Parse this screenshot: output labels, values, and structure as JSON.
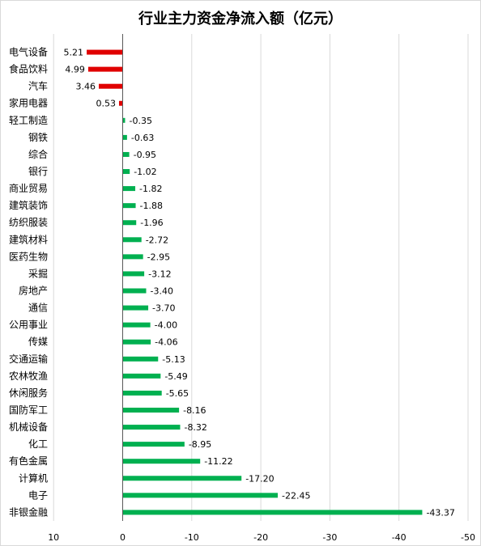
{
  "chart_data": {
    "type": "bar",
    "orientation": "horizontal",
    "title": "行业主力资金净流入额（亿元）",
    "xlabel": "",
    "ylabel": "",
    "xlim": [
      10,
      -50
    ],
    "x_reversed": true,
    "x_ticks": [
      10,
      0,
      -10,
      -20,
      -30,
      -40,
      -50
    ],
    "grid": "vertical",
    "legend": "none",
    "colors": {
      "positive": "#e00000",
      "negative": "#00b050",
      "grid": "#d9d9d9",
      "axis": "#595959"
    },
    "categories": [
      "电气设备",
      "食品饮料",
      "汽车",
      "家用电器",
      "轻工制造",
      "钢铁",
      "综合",
      "银行",
      "商业贸易",
      "建筑装饰",
      "纺织服装",
      "建筑材料",
      "医药生物",
      "采掘",
      "房地产",
      "通信",
      "公用事业",
      "传媒",
      "交通运输",
      "农林牧渔",
      "休闲服务",
      "国防军工",
      "机械设备",
      "化工",
      "有色金属",
      "计算机",
      "电子",
      "非银金融"
    ],
    "values": [
      5.21,
      4.99,
      3.46,
      0.53,
      -0.35,
      -0.63,
      -0.95,
      -1.02,
      -1.82,
      -1.88,
      -1.96,
      -2.72,
      -2.95,
      -3.12,
      -3.4,
      -3.7,
      -4.0,
      -4.06,
      -5.13,
      -5.49,
      -5.65,
      -8.16,
      -8.32,
      -8.95,
      -11.22,
      -17.2,
      -22.45,
      -43.37
    ]
  }
}
